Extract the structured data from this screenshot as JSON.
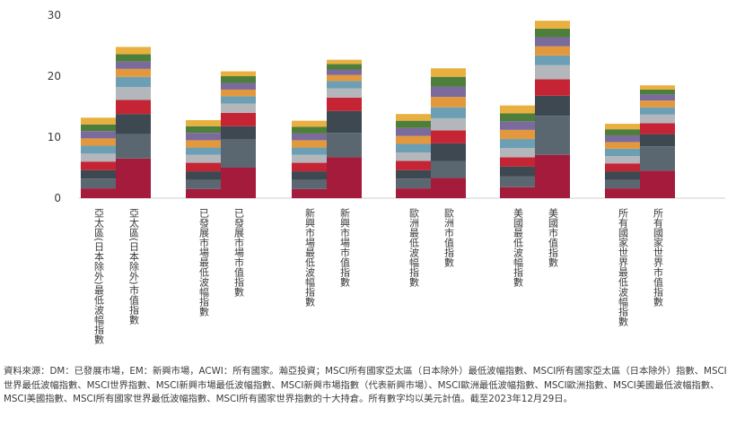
{
  "chart_data": {
    "type": "bar",
    "stacked": true,
    "ylim": [
      0,
      30
    ],
    "yticks": [
      "0",
      "10",
      "20",
      "30"
    ],
    "grid": false,
    "legend": "none",
    "segment_colors": [
      "#a51b3c",
      "#5b6770",
      "#3d4850",
      "#c42434",
      "#b3b7bc",
      "#6c9fb4",
      "#e3993b",
      "#7b6a9c",
      "#4e7e3c",
      "#e9b040"
    ],
    "categories": [
      "亞太區(日本除外)最低波幅指數",
      "亞太區(日本除外)市值指數",
      "已發展市場最低波幅指數",
      "已發展市場市值指數",
      "新興市場最低波幅指數",
      "新興市場市值指數",
      "歐洲最低波幅指數",
      "歐洲市值指數",
      "美國最低波幅指數",
      "美國市值指數",
      "所有國家世界最低波幅指數",
      "所有國家世界市值指數"
    ],
    "series": [
      {
        "values": [
          1.6,
          6.5,
          1.5,
          5.0,
          1.5,
          6.7,
          1.6,
          3.3,
          1.8,
          7.1,
          1.6,
          4.5
        ]
      },
      {
        "values": [
          1.6,
          4.0,
          1.5,
          4.6,
          1.5,
          4.0,
          1.6,
          2.8,
          1.8,
          6.4,
          1.4,
          4.0
        ]
      },
      {
        "values": [
          1.4,
          3.3,
          1.4,
          2.2,
          1.4,
          3.6,
          1.4,
          2.9,
          1.6,
          3.3,
          1.4,
          2.0
        ]
      },
      {
        "values": [
          1.4,
          2.3,
          1.4,
          2.2,
          1.4,
          2.2,
          1.5,
          2.1,
          1.5,
          2.7,
          1.3,
          1.8
        ]
      },
      {
        "values": [
          1.3,
          2.1,
          1.3,
          1.5,
          1.3,
          1.5,
          1.4,
          2.0,
          1.5,
          2.3,
          1.2,
          1.4
        ]
      },
      {
        "values": [
          1.3,
          1.7,
          1.2,
          1.2,
          1.2,
          1.2,
          1.4,
          1.8,
          1.5,
          1.6,
          1.2,
          1.2
        ]
      },
      {
        "values": [
          1.2,
          1.3,
          1.2,
          1.1,
          1.2,
          1.0,
          1.3,
          1.7,
          1.5,
          1.5,
          1.1,
          1.1
        ]
      },
      {
        "values": [
          1.2,
          1.2,
          1.2,
          1.1,
          1.1,
          0.9,
          1.3,
          1.7,
          1.4,
          1.5,
          1.1,
          1.0
        ]
      },
      {
        "values": [
          1.1,
          1.2,
          1.1,
          1.1,
          1.1,
          0.9,
          1.2,
          1.6,
          1.3,
          1.4,
          1.0,
          0.8
        ]
      },
      {
        "values": [
          1.1,
          1.2,
          1.0,
          0.8,
          1.0,
          0.7,
          1.1,
          1.4,
          1.3,
          1.3,
          0.9,
          0.7
        ]
      }
    ]
  },
  "note": "資料來源：DM：已發展市場，EM：新興市場，ACWI：所有國家。瀚亞投資；MSCI所有國家亞太區（日本除外）最低波幅指數、MSCI所有國家亞太區（日本除外）指數、MSCI世界最低波幅指數、MSCI世界指數、MSCI新興市場最低波幅指數、MSCI新興市場指數（代表新興市場）、MSCI歐洲最低波幅指數、MSCI歐洲指數、MSCI美國最低波幅指數、MSCI美國指數、MSCI所有國家世界最低波幅指數、MSCI所有國家世界指數的十大持倉。所有數字均以美元計值。截至2023年12月29日。"
}
